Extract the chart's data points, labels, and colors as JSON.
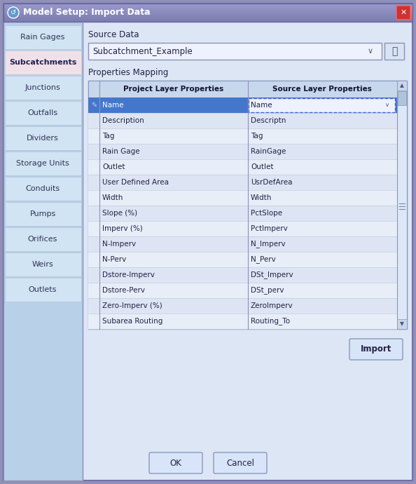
{
  "title": "Model Setup: Import Data",
  "bg_outer": "#9090b8",
  "dialog_bg": "#dce6f5",
  "title_bar_top": "#9898c8",
  "title_bar_bottom": "#5560a8",
  "sidebar_bg": "#b8d0e8",
  "sidebar_selected_bg": "#e8d0d8",
  "sidebar_item_bg": "#d0e4f4",
  "sidebar_items": [
    "Rain Gages",
    "Subcatchments",
    "Junctions",
    "Outfalls",
    "Dividers",
    "Storage Units",
    "Conduits",
    "Pumps",
    "Orifices",
    "Weirs",
    "Outlets"
  ],
  "sidebar_selected": 1,
  "source_data_label": "Source Data",
  "source_data_value": "Subcatchment_Example",
  "properties_mapping_label": "Properties Mapping",
  "table_header_left": "Project Layer Properties",
  "table_header_right": "Source Layer Properties",
  "table_rows": [
    [
      "Name",
      "Name"
    ],
    [
      "Description",
      "Descriptn"
    ],
    [
      "Tag",
      "Tag"
    ],
    [
      "Rain Gage",
      "RainGage"
    ],
    [
      "Outlet",
      "Outlet"
    ],
    [
      "User Defined Area",
      "UsrDefArea"
    ],
    [
      "Width",
      "Width"
    ],
    [
      "Slope (%)",
      "PctSlope"
    ],
    [
      "Imperv (%)",
      "PctImperv"
    ],
    [
      "N-Imperv",
      "N_Imperv"
    ],
    [
      "N-Perv",
      "N_Perv"
    ],
    [
      "Dstore-Imperv",
      "DSt_Imperv"
    ],
    [
      "Dstore-Perv",
      "DSt_perv"
    ],
    [
      "Zero-Imperv (%)",
      "ZeroImperv"
    ],
    [
      "Subarea Routing",
      "Routing_To"
    ]
  ],
  "row_selected": 0,
  "row_selected_bg": "#4477cc",
  "row_selected_fg": "#ffffff",
  "row_bg": "#e8eef8",
  "table_header_bg": "#c8d8ec",
  "button_ok": "OK",
  "button_cancel": "Cancel",
  "button_import": "Import"
}
